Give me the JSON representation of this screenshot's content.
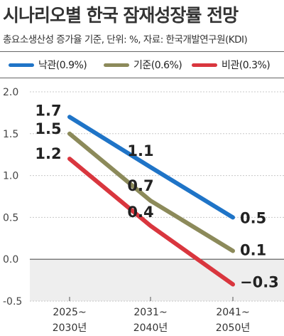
{
  "header": {
    "title": "시나리오별 한국 잠재성장률 전망",
    "subtitle": "총요소생산성 증가율 기준, 단위: %, 자료: 한국개발연구원(KDI)"
  },
  "chart_data": {
    "type": "line",
    "categories": [
      [
        "2025~",
        "2030년"
      ],
      [
        "2031~",
        "2040년"
      ],
      [
        "2041~",
        "2050년"
      ]
    ],
    "yticks": [
      "2.0",
      "1.5",
      "1.0",
      "0.5",
      "0.0",
      "-0.5"
    ],
    "ylim": [
      -0.5,
      2.0
    ],
    "series": [
      {
        "name": "낙관(0.9%)",
        "color": "#1f74c7",
        "values": [
          1.7,
          1.1,
          0.5
        ],
        "labels": [
          "1.7",
          "1.1",
          "0.5"
        ]
      },
      {
        "name": "기준(0.6%)",
        "color": "#8c8a5a",
        "values": [
          1.5,
          0.7,
          0.1
        ],
        "labels": [
          "1.5",
          "0.7",
          "0.1"
        ]
      },
      {
        "name": "비관(0.3%)",
        "color": "#d9363e",
        "values": [
          1.2,
          0.4,
          -0.3
        ],
        "labels": [
          "1.2",
          "0.4",
          "−0.3"
        ]
      }
    ],
    "negative_region_shaded": true,
    "legend_position": "top"
  }
}
